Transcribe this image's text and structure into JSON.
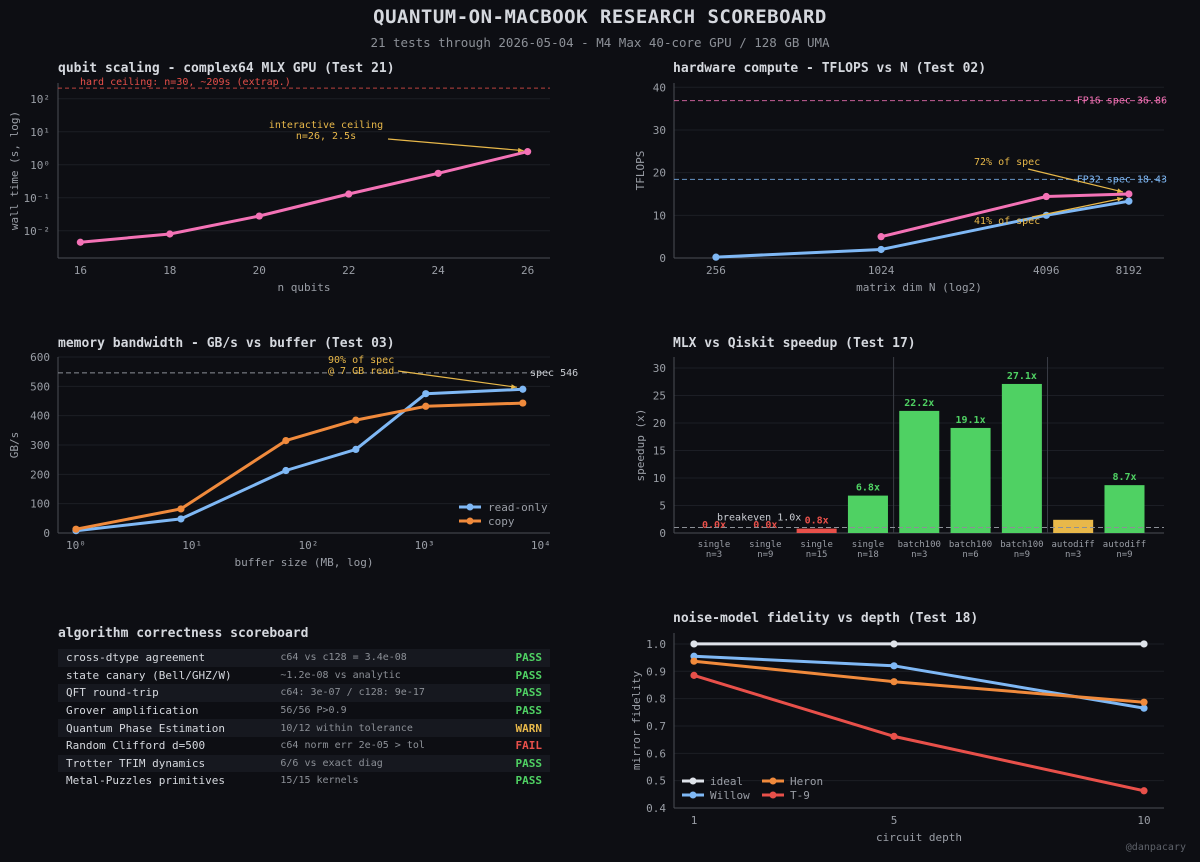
{
  "header": {
    "title": "QUANTUM-ON-MACBOOK RESEARCH SCOREBOARD",
    "subtitle": "21 tests through 2026-05-04  -  M4 Max 40-core GPU / 128 GB UMA"
  },
  "credit": "@danpacary",
  "colors": {
    "pink": "#f472b6",
    "blue": "#7fb8f5",
    "orange": "#f08a3c",
    "green": "#4fd163",
    "yellow": "#e8b84a",
    "red": "#e8504a",
    "white": "#dfe3ea",
    "pass": "#4fd163",
    "warn": "#e8b84a",
    "fail": "#e8504a"
  },
  "chart_data": [
    {
      "type": "line",
      "title": "qubit scaling - complex64 MLX GPU (Test 21)",
      "xlabel": "n qubits",
      "ylabel": "wall time (s, log)",
      "yscale": "log",
      "xlim": [
        15.5,
        26.5
      ],
      "ylim": [
        0.0015,
        300
      ],
      "xticks": [
        16,
        18,
        20,
        22,
        24,
        26
      ],
      "yticks": [
        {
          "v": 0.01,
          "label": "10⁻²"
        },
        {
          "v": 0.1,
          "label": "10⁻¹"
        },
        {
          "v": 1,
          "label": "10⁰"
        },
        {
          "v": 10,
          "label": "10¹"
        },
        {
          "v": 100,
          "label": "10²"
        }
      ],
      "series": [
        {
          "color": "pink",
          "x": [
            16,
            18,
            20,
            22,
            24,
            26
          ],
          "y": [
            0.0045,
            0.008,
            0.028,
            0.13,
            0.55,
            2.5
          ]
        }
      ],
      "hline": {
        "y": 209,
        "label": "hard ceiling: n=30, ~209s (extrap.)"
      },
      "annotation": {
        "line1": "interactive ceiling",
        "line2": "n=26, 2.5s",
        "x": 26,
        "y": 2.5
      }
    },
    {
      "type": "line",
      "title": "hardware compute - TFLOPS vs N (Test 02)",
      "xlabel": "matrix dim N (log2)",
      "ylabel": "TFLOPS",
      "xscale": "log2",
      "xlim": [
        180,
        11000
      ],
      "ylim": [
        0,
        41
      ],
      "xticks": [
        256,
        1024,
        4096,
        8192
      ],
      "yticks": [
        0,
        10,
        20,
        30,
        40
      ],
      "series": [
        {
          "name": "FP32",
          "color": "blue",
          "x": [
            256,
            1024,
            4096,
            8192
          ],
          "y": [
            0.2,
            2.0,
            10.0,
            13.3
          ]
        },
        {
          "name": "FP16",
          "color": "pink",
          "x": [
            1024,
            4096,
            8192
          ],
          "y": [
            5.0,
            14.4,
            15.0
          ]
        }
      ],
      "hlines": [
        {
          "y": 36.86,
          "label": "FP16 spec 36.86",
          "color": "pink"
        },
        {
          "y": 18.43,
          "label": "FP32 spec 18.43",
          "color": "blue"
        }
      ],
      "annotations": [
        {
          "text": "72% of spec",
          "x": 8192,
          "y": 14.7
        },
        {
          "text": "41% of spec",
          "x": 8192,
          "y": 14.2
        }
      ]
    },
    {
      "type": "line",
      "title": "memory bandwidth - GB/s vs buffer (Test 03)",
      "xlabel": "buffer size (MB, log)",
      "ylabel": "GB/s",
      "xscale": "log",
      "xlim": [
        0.7,
        12000
      ],
      "ylim": [
        0,
        600
      ],
      "xticks": [
        {
          "v": 1,
          "label": "10⁰"
        },
        {
          "v": 10,
          "label": "10¹"
        },
        {
          "v": 100,
          "label": "10²"
        },
        {
          "v": 1000,
          "label": "10³"
        },
        {
          "v": 10000,
          "label": "10⁴"
        }
      ],
      "yticks": [
        0,
        100,
        200,
        300,
        400,
        500,
        600
      ],
      "series": [
        {
          "name": "read-only",
          "color": "blue",
          "x": [
            1,
            8,
            64,
            256,
            1024,
            7000
          ],
          "y": [
            8,
            48,
            213,
            285,
            475,
            490
          ]
        },
        {
          "name": "copy",
          "color": "orange",
          "x": [
            1,
            8,
            64,
            256,
            1024,
            7000
          ],
          "y": [
            13,
            82,
            315,
            385,
            432,
            443
          ]
        }
      ],
      "hline": {
        "y": 546,
        "label": "spec 546"
      },
      "annotation": {
        "line1": "90% of spec",
        "line2": "@ 7 GB read",
        "x": 7000,
        "y": 490
      },
      "legend": "bottom-right"
    },
    {
      "type": "bar",
      "title": "MLX vs Qiskit speedup (Test 17)",
      "ylabel": "speedup (x)",
      "ylim": [
        0,
        32
      ],
      "yticks": [
        0,
        5,
        10,
        15,
        20,
        25,
        30
      ],
      "categories": [
        {
          "l1": "single",
          "l2": "n=3"
        },
        {
          "l1": "single",
          "l2": "n=9"
        },
        {
          "l1": "single",
          "l2": "n=15"
        },
        {
          "l1": "single",
          "l2": "n=18"
        },
        {
          "l1": "batch100",
          "l2": "n=3"
        },
        {
          "l1": "batch100",
          "l2": "n=6"
        },
        {
          "l1": "batch100",
          "l2": "n=9"
        },
        {
          "l1": "autodiff",
          "l2": "n=3"
        },
        {
          "l1": "autodiff",
          "l2": "n=9"
        }
      ],
      "values": [
        0.0,
        0.0,
        0.8,
        6.8,
        22.2,
        19.1,
        27.1,
        2.4,
        8.7
      ],
      "bar_colors": [
        "red",
        "red",
        "red",
        "green",
        "green",
        "green",
        "green",
        "yellow",
        "green"
      ],
      "labels": [
        "0.0x",
        "0.0x",
        "0.8x",
        "6.8x",
        "22.2x",
        "19.1x",
        "27.1x",
        "",
        "8.7x"
      ],
      "label_colors": [
        "red",
        "red",
        "red",
        "green",
        "green",
        "green",
        "green",
        "yellow",
        "green"
      ],
      "separators_after": [
        3,
        6
      ],
      "breakeven": {
        "y": 1.0,
        "label": "breakeven 1.0x"
      }
    },
    {
      "type": "line",
      "title": "noise-model fidelity vs depth (Test 18)",
      "xlabel": "circuit depth",
      "ylabel": "mirror fidelity",
      "xlim": [
        0.6,
        10.4
      ],
      "ylim": [
        0.4,
        1.04
      ],
      "xticks": [
        1,
        5,
        10
      ],
      "yticks": [
        0.4,
        0.5,
        0.6,
        0.7,
        0.8,
        0.9,
        1.0
      ],
      "series": [
        {
          "name": "ideal",
          "color": "white",
          "x": [
            1,
            5,
            10
          ],
          "y": [
            1.0,
            1.0,
            1.0
          ]
        },
        {
          "name": "Willow",
          "color": "blue",
          "x": [
            1,
            5,
            10
          ],
          "y": [
            0.955,
            0.92,
            0.765
          ]
        },
        {
          "name": "Heron",
          "color": "orange",
          "x": [
            1,
            5,
            10
          ],
          "y": [
            0.937,
            0.862,
            0.787
          ]
        },
        {
          "name": "T-9",
          "color": "red",
          "x": [
            1,
            5,
            10
          ],
          "y": [
            0.885,
            0.662,
            0.463
          ]
        }
      ],
      "legend": "bottom-left"
    }
  ],
  "scoreboard": {
    "title": "algorithm correctness scoreboard",
    "rows": [
      {
        "name": "cross-dtype agreement",
        "detail": "c64 vs c128 = 3.4e-08",
        "status": "PASS"
      },
      {
        "name": "state canary (Bell/GHZ/W)",
        "detail": "~1.2e-08 vs analytic",
        "status": "PASS"
      },
      {
        "name": "QFT round-trip",
        "detail": "c64: 3e-07 / c128: 9e-17",
        "status": "PASS"
      },
      {
        "name": "Grover amplification",
        "detail": "56/56 P>0.9",
        "status": "PASS"
      },
      {
        "name": "Quantum Phase Estimation",
        "detail": "10/12 within tolerance",
        "status": "WARN"
      },
      {
        "name": "Random Clifford d=500",
        "detail": "c64 norm err 2e-05 > tol",
        "status": "FAIL"
      },
      {
        "name": "Trotter TFIM dynamics",
        "detail": "6/6 vs exact diag",
        "status": "PASS"
      },
      {
        "name": "Metal-Puzzles primitives",
        "detail": "15/15 kernels",
        "status": "PASS"
      }
    ]
  }
}
